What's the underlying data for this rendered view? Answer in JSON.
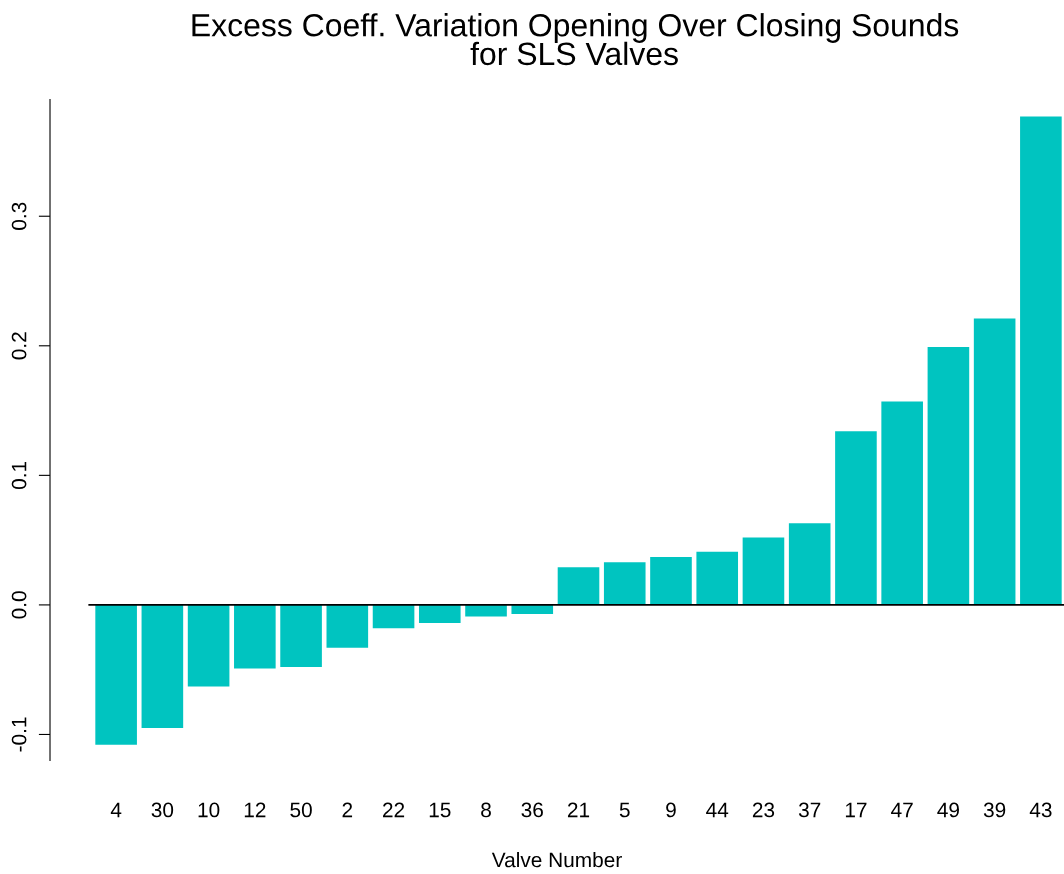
{
  "chart_data": {
    "type": "bar",
    "title": "Excess Coeff. Variation Opening Over Closing Sounds\nfor SLS Valves",
    "xlabel": "Valve Number",
    "categories": [
      "4",
      "30",
      "10",
      "12",
      "50",
      "2",
      "22",
      "15",
      "8",
      "36",
      "21",
      "5",
      "9",
      "44",
      "23",
      "37",
      "17",
      "47",
      "49",
      "39",
      "43"
    ],
    "values": [
      -0.108,
      -0.095,
      -0.063,
      -0.049,
      -0.048,
      -0.033,
      -0.018,
      -0.014,
      -0.009,
      -0.007,
      0.029,
      0.033,
      0.037,
      0.041,
      0.052,
      0.063,
      0.134,
      0.157,
      0.199,
      0.221,
      0.377
    ],
    "color": "#00c4c0",
    "ylim": [
      -0.12,
      0.39
    ],
    "yticks": [
      {
        "value": -0.1,
        "label": "-0.1"
      },
      {
        "value": 0,
        "label": "0.0"
      },
      0.1,
      0.2,
      0.3
    ],
    "ref_lines": [
      {
        "axis": "y",
        "value": 0,
        "color": "#000000"
      }
    ],
    "grid": false,
    "legend": false
  }
}
